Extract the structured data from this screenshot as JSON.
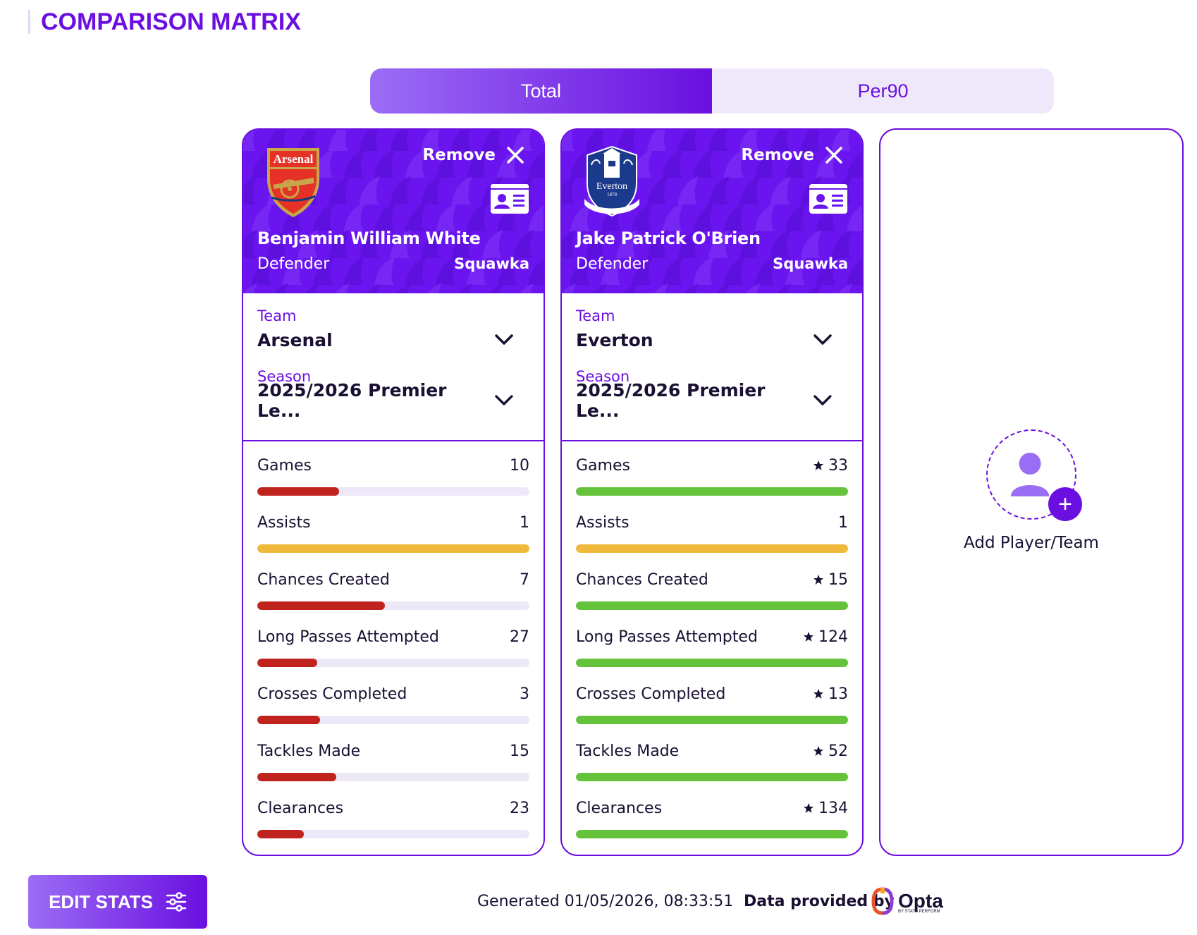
{
  "header": {
    "title": "COMPARISON MATRIX"
  },
  "toggle": {
    "options": [
      "Total",
      "Per90"
    ],
    "active": "Total"
  },
  "colors": {
    "accent": "#6a0fe0",
    "low": "#c0221e",
    "mid": "#f0b93c",
    "high": "#65c33b"
  },
  "cards": [
    {
      "club_crest": "arsenal-crest",
      "remove_label": "Remove",
      "player_name": "Benjamin William White",
      "position": "Defender",
      "source": "Squawka",
      "team_label": "Team",
      "team_value": "Arsenal",
      "season_label": "Season",
      "season_value": "2025/2026 Premier Le...",
      "stats": [
        {
          "name": "Games",
          "value": "10",
          "star": false,
          "fill": 0.3,
          "color": "low"
        },
        {
          "name": "Assists",
          "value": "1",
          "star": false,
          "fill": 1.0,
          "color": "mid"
        },
        {
          "name": "Chances Created",
          "value": "7",
          "star": false,
          "fill": 0.47,
          "color": "low"
        },
        {
          "name": "Long Passes Attempted",
          "value": "27",
          "star": false,
          "fill": 0.22,
          "color": "low"
        },
        {
          "name": "Crosses Completed",
          "value": "3",
          "star": false,
          "fill": 0.23,
          "color": "low"
        },
        {
          "name": "Tackles Made",
          "value": "15",
          "star": false,
          "fill": 0.29,
          "color": "low"
        },
        {
          "name": "Clearances",
          "value": "23",
          "star": false,
          "fill": 0.17,
          "color": "low"
        }
      ]
    },
    {
      "club_crest": "everton-crest",
      "remove_label": "Remove",
      "player_name": "Jake Patrick O'Brien",
      "position": "Defender",
      "source": "Squawka",
      "team_label": "Team",
      "team_value": "Everton",
      "season_label": "Season",
      "season_value": "2025/2026 Premier Le...",
      "stats": [
        {
          "name": "Games",
          "value": "33",
          "star": true,
          "fill": 1.0,
          "color": "high"
        },
        {
          "name": "Assists",
          "value": "1",
          "star": false,
          "fill": 1.0,
          "color": "mid"
        },
        {
          "name": "Chances Created",
          "value": "15",
          "star": true,
          "fill": 1.0,
          "color": "high"
        },
        {
          "name": "Long Passes Attempted",
          "value": "124",
          "star": true,
          "fill": 1.0,
          "color": "high"
        },
        {
          "name": "Crosses Completed",
          "value": "13",
          "star": true,
          "fill": 1.0,
          "color": "high"
        },
        {
          "name": "Tackles Made",
          "value": "52",
          "star": true,
          "fill": 1.0,
          "color": "high"
        },
        {
          "name": "Clearances",
          "value": "134",
          "star": true,
          "fill": 1.0,
          "color": "high"
        }
      ]
    }
  ],
  "add_card": {
    "label": "Add Player/Team"
  },
  "footer": {
    "edit_label": "EDIT STATS",
    "generated": "Generated 01/05/2026, 08:33:51",
    "provided_by": "Data provided by",
    "provider_name": "Opta",
    "provider_sub": "BY STATS PERFORM"
  }
}
